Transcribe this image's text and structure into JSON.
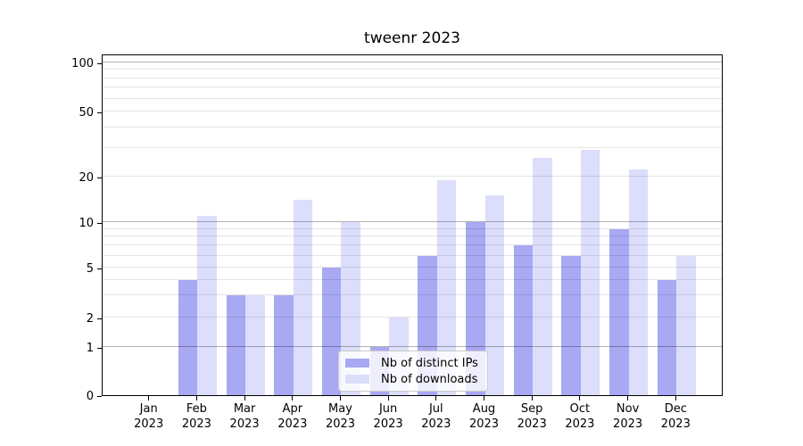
{
  "title": "tweenr 2023",
  "chart_data": {
    "type": "bar",
    "title": "tweenr 2023",
    "categories": [
      "Jan 2023",
      "Feb 2023",
      "Mar 2023",
      "Apr 2023",
      "May 2023",
      "Jun 2023",
      "Jul 2023",
      "Aug 2023",
      "Sep 2023",
      "Oct 2023",
      "Nov 2023",
      "Dec 2023"
    ],
    "category_month": [
      "Jan",
      "Feb",
      "Mar",
      "Apr",
      "May",
      "Jun",
      "Jul",
      "Aug",
      "Sep",
      "Oct",
      "Nov",
      "Dec"
    ],
    "category_year": "2023",
    "series": [
      {
        "name": "Nb of distinct IPs",
        "color": "#a8a8f3",
        "values": [
          0,
          4,
          3,
          3,
          5,
          1,
          6,
          10,
          7,
          6,
          9,
          4
        ]
      },
      {
        "name": "Nb of downloads",
        "color": "#dcdefb",
        "values": [
          0,
          11,
          3,
          14,
          10,
          2,
          19,
          15,
          26,
          29,
          22,
          6
        ]
      }
    ],
    "xlabel": "",
    "ylabel": "",
    "y_ticks": [
      0,
      1,
      2,
      5,
      10,
      20,
      50,
      100
    ],
    "y_minor_gridlines": [
      2,
      3,
      4,
      5,
      6,
      7,
      8,
      9,
      20,
      30,
      40,
      50,
      60,
      70,
      80,
      90
    ],
    "y_major_gridlines": [
      1,
      10,
      100
    ],
    "y_scale": "log-like (linear between 0 and 1)",
    "ylim": [
      0,
      112
    ],
    "legend": {
      "position": "lower center"
    },
    "grid": {
      "horizontal": true,
      "vertical": false
    }
  }
}
